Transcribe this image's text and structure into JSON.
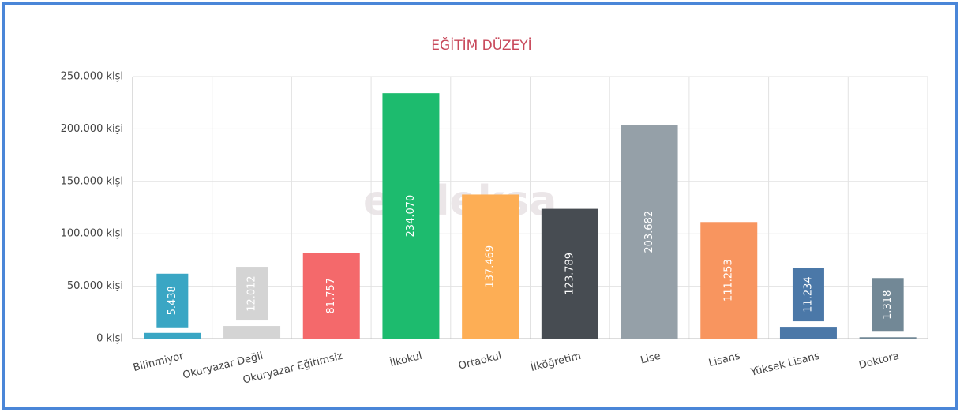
{
  "chart_data": {
    "type": "bar",
    "title": "EĞİTİM DÜZEYİ",
    "watermark": "endeksa",
    "categories": [
      "Bilinmiyor",
      "Okuryazar Değil",
      "Okuryazar Eğitimsiz",
      "İlkokul",
      "Ortaokul",
      "İlköğretim",
      "Lise",
      "Lisans",
      "Yüksek Lisans",
      "Doktora"
    ],
    "values": [
      5438,
      12012,
      81757,
      234070,
      137469,
      123789,
      203682,
      111253,
      11234,
      1318
    ],
    "value_labels": [
      "5.438",
      "12.012",
      "81.757",
      "234.070",
      "137.469",
      "123.789",
      "203.682",
      "111.253",
      "11.234",
      "1.318"
    ],
    "colors": [
      "#3aa6c4",
      "#d4d4d4",
      "#f4696b",
      "#1dbb6e",
      "#fdae55",
      "#474c52",
      "#95a0a8",
      "#f8955f",
      "#4b78a8",
      "#728896"
    ],
    "ylim": [
      0,
      250000
    ],
    "yticks": [
      {
        "value": 0,
        "label": "0 kişi"
      },
      {
        "value": 50000,
        "label": "50.000 kişi"
      },
      {
        "value": 100000,
        "label": "100.000 kişi"
      },
      {
        "value": 150000,
        "label": "150.000 kişi"
      },
      {
        "value": 200000,
        "label": "200.000 kişi"
      },
      {
        "value": 250000,
        "label": "250.000 kişi"
      }
    ],
    "grid": true
  }
}
